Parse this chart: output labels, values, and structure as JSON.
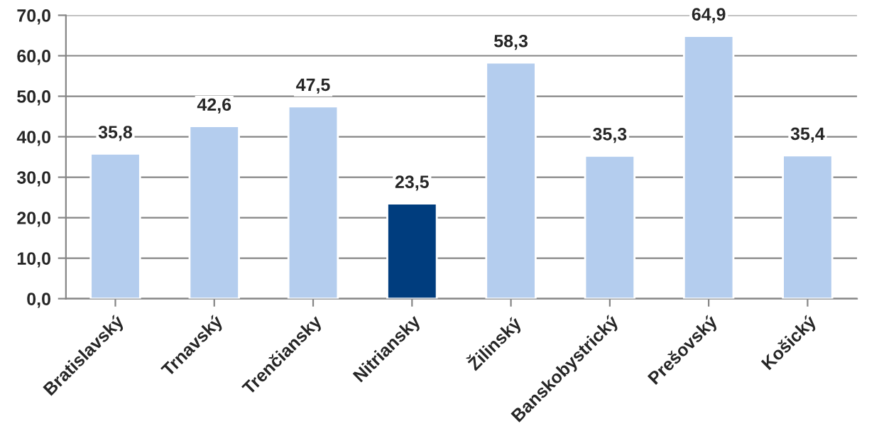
{
  "chart_data": {
    "type": "bar",
    "categories": [
      "Bratislavský",
      "Trnavský",
      "Trenčiansky",
      "Nitriansky",
      "Žilinský",
      "Banskobystrický",
      "Prešovský",
      "Košický"
    ],
    "values": [
      35.8,
      42.6,
      47.5,
      23.5,
      58.3,
      35.3,
      64.9,
      35.4
    ],
    "value_labels": [
      "35,8",
      "42,6",
      "47,5",
      "23,5",
      "58,3",
      "35,3",
      "64,9",
      "35,4"
    ],
    "colors": [
      "#b4cdee",
      "#b4cdee",
      "#b4cdee",
      "#003d7e",
      "#b4cdee",
      "#b4cdee",
      "#b4cdee",
      "#b4cdee"
    ],
    "ylim": [
      0,
      70
    ],
    "yticks": [
      {
        "value": 0,
        "label": "0,0"
      },
      {
        "value": 10,
        "label": "10,0"
      },
      {
        "value": 20,
        "label": "20,0"
      },
      {
        "value": 30,
        "label": "30,0"
      },
      {
        "value": 40,
        "label": "40,0"
      },
      {
        "value": 50,
        "label": "50,0"
      },
      {
        "value": 60,
        "label": "60,0"
      },
      {
        "value": 70,
        "label": "70,0"
      }
    ],
    "grid": "y"
  }
}
